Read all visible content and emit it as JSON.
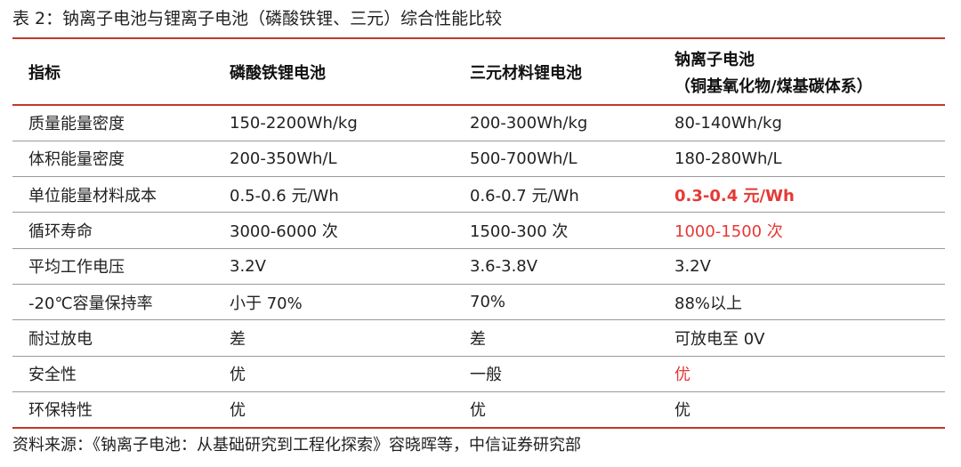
{
  "title": "表 2：钠离子电池与锂离子电池（磷酸铁锂、三元）综合性能比较",
  "header": {
    "col1": "指标",
    "col2": "磷酸铁锂电池",
    "col3": "三元材料锂电池",
    "col4_line1": "钠离子电池",
    "col4_line2": "（铜基氧化物/煤基碳体系）"
  },
  "rows": [
    {
      "metric": "质量能量密度",
      "lfp": "150-2200Wh/kg",
      "ncm": "200-300Wh/kg",
      "sodium": "80-140Wh/kg"
    },
    {
      "metric": "体积能量密度",
      "lfp": "200-350Wh/L",
      "ncm": "500-700Wh/L",
      "sodium": "180-280Wh/L"
    },
    {
      "metric": "单位能量材料成本",
      "lfp": "0.5-0.6 元/Wh",
      "ncm": "0.6-0.7 元/Wh",
      "sodium": "0.3-0.4 元/Wh"
    },
    {
      "metric": "循环寿命",
      "lfp": "3000-6000 次",
      "ncm": "1500-300 次",
      "sodium": "1000-1500 次"
    },
    {
      "metric": "平均工作电压",
      "lfp": "3.2V",
      "ncm": "3.6-3.8V",
      "sodium": "3.2V"
    },
    {
      "metric": "-20℃容量保持率",
      "lfp": "小于 70%",
      "ncm": "70%",
      "sodium": "88%以上"
    },
    {
      "metric": "耐过放电",
      "lfp": "差",
      "ncm": "差",
      "sodium": "可放电至 0V"
    },
    {
      "metric": "安全性",
      "lfp": "优",
      "ncm": "一般",
      "sodium": "优"
    },
    {
      "metric": "环保特性",
      "lfp": "优",
      "ncm": "优",
      "sodium": "优"
    }
  ],
  "source": "资料来源：《钠离子电池：从基础研究到工程化探索》容晓晖等，中信证券研究部",
  "colors": {
    "accent_rule": "#c0392b",
    "highlight": "#e53935"
  }
}
